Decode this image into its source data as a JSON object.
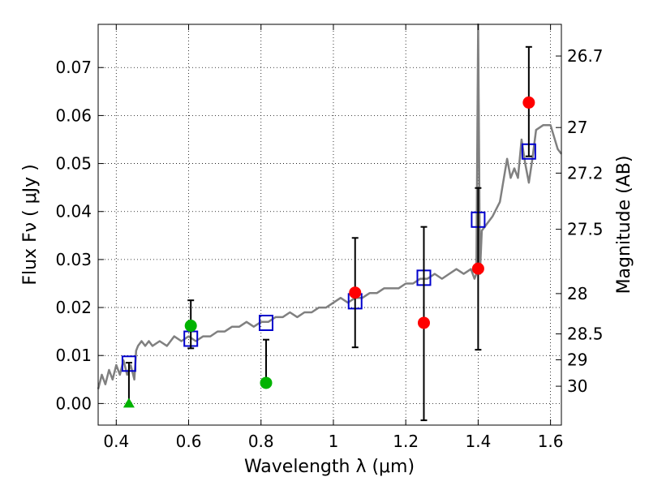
{
  "chart_data": {
    "type": "scatter",
    "xlabel": "Wavelength  λ (μm)",
    "ylabel": "Flux  Fν  ( μJy )",
    "ylabel_right": "Magnitude (AB)",
    "xlim": [
      0.35,
      1.63
    ],
    "ylim": [
      -0.0045,
      0.079
    ],
    "x_ticks": [
      0.4,
      0.6,
      0.8,
      1.0,
      1.2,
      1.4,
      1.6
    ],
    "x_tick_labels": [
      "0.4",
      "0.6",
      "0.8",
      "1",
      "1.2",
      "1.4",
      "1.6"
    ],
    "y_ticks": [
      0.0,
      0.01,
      0.02,
      0.03,
      0.04,
      0.05,
      0.06,
      0.07
    ],
    "y_tick_labels": [
      "0.00",
      "0.01",
      "0.02",
      "0.03",
      "0.04",
      "0.05",
      "0.06",
      "0.07"
    ],
    "right_ticks": [
      {
        "flux": 0.0724,
        "label": "26.7"
      },
      {
        "flux": 0.0575,
        "label": "27"
      },
      {
        "flux": 0.048,
        "label": "27.2"
      },
      {
        "flux": 0.0363,
        "label": "27.5"
      },
      {
        "flux": 0.0229,
        "label": "28"
      },
      {
        "flux": 0.0145,
        "label": "28.5"
      },
      {
        "flux": 0.0091,
        "label": "29"
      },
      {
        "flux": 0.0036,
        "label": "30"
      }
    ],
    "grid": true,
    "series": [
      {
        "kind": "model-sed",
        "color": "#808080",
        "x": [
          0.35,
          0.36,
          0.37,
          0.38,
          0.39,
          0.4,
          0.41,
          0.42,
          0.43,
          0.44,
          0.45,
          0.455,
          0.46,
          0.47,
          0.48,
          0.49,
          0.5,
          0.52,
          0.54,
          0.56,
          0.58,
          0.6,
          0.62,
          0.64,
          0.66,
          0.68,
          0.7,
          0.72,
          0.74,
          0.76,
          0.78,
          0.8,
          0.82,
          0.84,
          0.86,
          0.88,
          0.9,
          0.92,
          0.94,
          0.96,
          0.98,
          1.0,
          1.02,
          1.04,
          1.06,
          1.08,
          1.1,
          1.12,
          1.14,
          1.16,
          1.18,
          1.2,
          1.22,
          1.24,
          1.26,
          1.28,
          1.3,
          1.32,
          1.34,
          1.36,
          1.38,
          1.39,
          1.395,
          1.4,
          1.405,
          1.41,
          1.42,
          1.44,
          1.46,
          1.48,
          1.49,
          1.5,
          1.51,
          1.52,
          1.53,
          1.54,
          1.55,
          1.56,
          1.58,
          1.6,
          1.62,
          1.63
        ],
        "y": [
          0.003,
          0.006,
          0.004,
          0.007,
          0.005,
          0.008,
          0.006,
          0.009,
          0.006,
          0.008,
          0.005,
          0.011,
          0.012,
          0.013,
          0.012,
          0.013,
          0.012,
          0.013,
          0.012,
          0.014,
          0.013,
          0.014,
          0.013,
          0.014,
          0.014,
          0.015,
          0.015,
          0.016,
          0.016,
          0.017,
          0.016,
          0.017,
          0.017,
          0.018,
          0.018,
          0.019,
          0.018,
          0.019,
          0.019,
          0.02,
          0.02,
          0.021,
          0.022,
          0.021,
          0.022,
          0.022,
          0.023,
          0.023,
          0.024,
          0.024,
          0.024,
          0.025,
          0.025,
          0.026,
          0.026,
          0.027,
          0.026,
          0.027,
          0.028,
          0.027,
          0.028,
          0.026,
          0.027,
          0.08,
          0.027,
          0.036,
          0.037,
          0.039,
          0.042,
          0.051,
          0.047,
          0.049,
          0.047,
          0.055,
          0.05,
          0.046,
          0.051,
          0.057,
          0.058,
          0.058,
          0.053,
          0.052
        ]
      },
      {
        "kind": "model-photometry",
        "marker": "open-square",
        "color": "#0000cc",
        "x": [
          0.435,
          0.606,
          0.814,
          1.06,
          1.25,
          1.4,
          1.54
        ],
        "y": [
          0.0083,
          0.0135,
          0.0168,
          0.0213,
          0.0262,
          0.0383,
          0.0525
        ]
      },
      {
        "kind": "observed-optical",
        "marker": "filled-circle",
        "color": "#00b300",
        "x": [
          0.606,
          0.814
        ],
        "y": [
          0.0162,
          0.0043
        ],
        "err_lo": [
          0.0115,
          0.0045
        ],
        "err_hi": [
          0.0215,
          0.0133
        ]
      },
      {
        "kind": "observed-nir",
        "marker": "filled-circle",
        "color": "#ff0000",
        "x": [
          1.06,
          1.25,
          1.4,
          1.54
        ],
        "y": [
          0.0231,
          0.0168,
          0.0281,
          0.0627
        ],
        "err_lo": [
          0.0117,
          -0.0035,
          0.0112,
          0.0515
        ],
        "err_hi": [
          0.0345,
          0.0368,
          0.0449,
          0.0743
        ]
      },
      {
        "kind": "upper-limit",
        "marker": "triangle-up",
        "color": "#00b300",
        "x": [
          0.435
        ],
        "y": [
          0.0
        ],
        "err_lo": [
          0.0
        ],
        "err_hi": [
          0.0085
        ]
      }
    ]
  }
}
